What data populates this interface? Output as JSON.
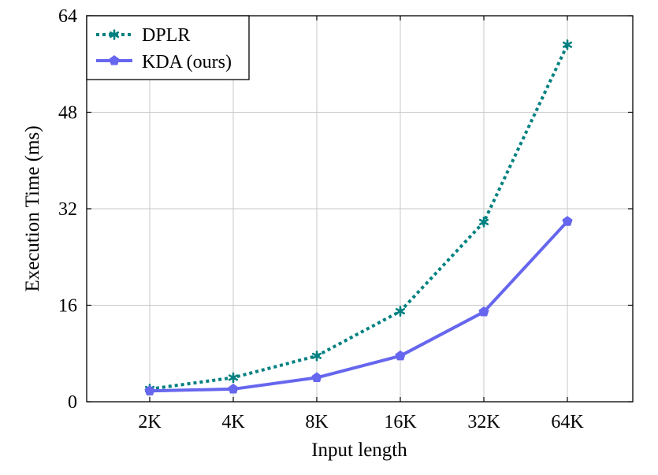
{
  "chart_data": {
    "type": "line",
    "title": "",
    "xlabel": "Input length",
    "ylabel": "Execution Time (ms)",
    "categories": [
      "2K",
      "4K",
      "8K",
      "16K",
      "32K",
      "64K"
    ],
    "ylim": [
      0,
      64
    ],
    "yticks": [
      0,
      16,
      32,
      48,
      64
    ],
    "grid": true,
    "legend_position": "top-left",
    "series": [
      {
        "name": "DPLR",
        "values": [
          2.1,
          4.0,
          7.6,
          15.0,
          29.8,
          59.2
        ],
        "color": "#008080",
        "line_style": "dotted",
        "marker": "asterisk"
      },
      {
        "name": "KDA (ours)",
        "values": [
          1.8,
          2.1,
          4.0,
          7.6,
          14.9,
          29.9
        ],
        "color": "#6666ee",
        "line_style": "solid",
        "marker": "pentagon"
      }
    ]
  }
}
